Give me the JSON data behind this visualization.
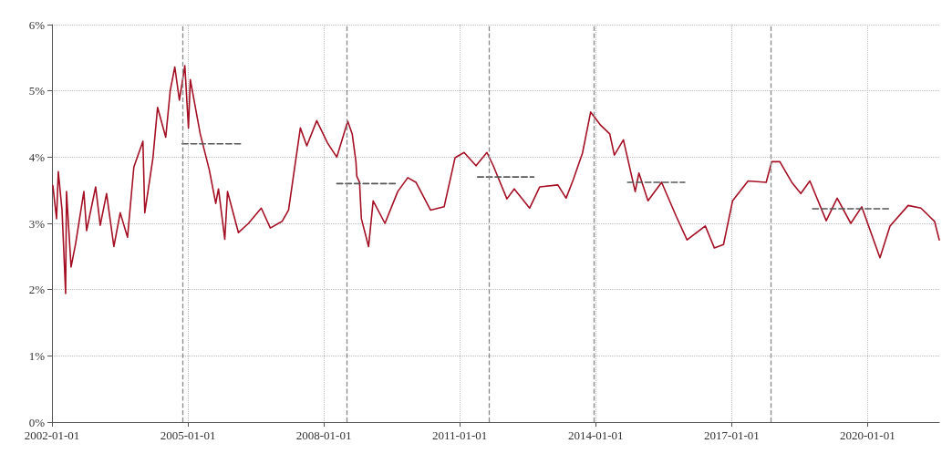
{
  "chart_data": {
    "type": "line",
    "xlim": [
      "2002-01-01",
      "2021-08-01"
    ],
    "xticks": [
      "2002-01-01",
      "2005-01-01",
      "2008-01-01",
      "2011-01-01",
      "2014-01-01",
      "2017-01-01",
      "2020-01-01"
    ],
    "ylim": [
      0,
      6
    ],
    "yticks": [
      {
        "value": 0,
        "label": "0%"
      },
      {
        "value": 1,
        "label": "1%"
      },
      {
        "value": 2,
        "label": "2%"
      },
      {
        "value": 3,
        "label": "3%"
      },
      {
        "value": 4,
        "label": "4%"
      },
      {
        "value": 5,
        "label": "5%"
      },
      {
        "value": 6,
        "label": "6%"
      }
    ],
    "grid": true,
    "marker": "none",
    "line_style": "solid",
    "series": [
      {
        "color": "#a50f24",
        "x": [
          "2002-01-08",
          "2002-02-07",
          "2002-02-21",
          "2002-03-23",
          "2002-04-21",
          "2002-04-28",
          "2002-06-04",
          "2002-07-11",
          "2002-09-15",
          "2002-10-07",
          "2002-12-19",
          "2003-01-25",
          "2003-03-17",
          "2003-05-15",
          "2003-07-05",
          "2003-09-02",
          "2003-10-23",
          "2004-01-04",
          "2004-01-19",
          "2004-03-25",
          "2004-05-01",
          "2004-07-06",
          "2004-08-11",
          "2004-09-17",
          "2004-10-24",
          "2004-12-07",
          "2005-01-05",
          "2005-01-20",
          "2005-04-10",
          "2005-06-23",
          "2005-08-13",
          "2005-09-04",
          "2005-10-25",
          "2005-11-16",
          "2006-02-12",
          "2006-05-04",
          "2006-08-15",
          "2006-10-27",
          "2007-01-30",
          "2007-03-23",
          "2007-06-26",
          "2007-08-17",
          "2007-11-05",
          "2008-02-01",
          "2008-04-15",
          "2008-07-12",
          "2008-08-17",
          "2008-09-16",
          "2008-09-23",
          "2008-10-15",
          "2008-10-30",
          "2008-12-27",
          "2009-02-02",
          "2009-05-08",
          "2009-08-19",
          "2009-11-08",
          "2010-01-13",
          "2010-05-10",
          "2010-08-28",
          "2010-11-24",
          "2011-02-05",
          "2011-05-12",
          "2011-08-08",
          "2011-09-28",
          "2012-01-16",
          "2012-03-15",
          "2012-07-17",
          "2012-10-06",
          "2013-03-02",
          "2013-05-07",
          "2013-07-04",
          "2013-09-16",
          "2013-11-21",
          "2014-02-10",
          "2014-04-24",
          "2014-05-31",
          "2014-08-12",
          "2014-11-15",
          "2014-12-15",
          "2015-02-26",
          "2015-06-16",
          "2015-10-11",
          "2016-01-07",
          "2016-06-02",
          "2016-08-14",
          "2016-10-27",
          "2017-01-08",
          "2017-05-13",
          "2017-10-06",
          "2017-11-19",
          "2018-01-24",
          "2018-04-30",
          "2018-07-12",
          "2018-09-23",
          "2019-02-02",
          "2019-05-01",
          "2019-08-19",
          "2019-11-15",
          "2020-04-10",
          "2020-06-30",
          "2020-11-23",
          "2021-03-06",
          "2021-06-24",
          "2021-08-01"
        ],
        "values": [
          3.57,
          3.07,
          3.78,
          3.2,
          1.94,
          3.48,
          2.34,
          2.7,
          3.48,
          2.89,
          3.55,
          2.97,
          3.45,
          2.65,
          3.16,
          2.79,
          3.85,
          4.24,
          3.16,
          3.99,
          4.75,
          4.3,
          5.0,
          5.36,
          4.86,
          5.38,
          4.44,
          5.17,
          4.35,
          3.8,
          3.3,
          3.52,
          2.76,
          3.48,
          2.86,
          3.0,
          3.23,
          2.93,
          3.03,
          3.2,
          4.44,
          4.17,
          4.55,
          4.21,
          4.0,
          4.54,
          4.35,
          3.93,
          3.71,
          3.62,
          3.07,
          2.65,
          3.34,
          3.0,
          3.48,
          3.69,
          3.62,
          3.2,
          3.25,
          3.99,
          4.07,
          3.87,
          4.07,
          3.87,
          3.37,
          3.52,
          3.23,
          3.55,
          3.58,
          3.38,
          3.66,
          4.06,
          4.68,
          4.48,
          4.35,
          4.03,
          4.26,
          3.48,
          3.76,
          3.34,
          3.62,
          3.11,
          2.75,
          2.96,
          2.63,
          2.68,
          3.34,
          3.64,
          3.62,
          3.93,
          3.93,
          3.62,
          3.45,
          3.64,
          3.04,
          3.38,
          3.0,
          3.25,
          2.48,
          2.96,
          3.27,
          3.23,
          3.03,
          2.75
        ]
      },
      {
        "type": "line",
        "line_style": "dashed",
        "color": "#555555",
        "x": [
          "2004-11-15",
          "2006-03-07"
        ],
        "values": [
          4.2,
          4.2
        ]
      },
      {
        "type": "line",
        "line_style": "dashed",
        "color": "#555555",
        "x": [
          "2008-04-15",
          "2009-08-19"
        ],
        "values": [
          3.6,
          3.6
        ]
      },
      {
        "type": "line",
        "line_style": "dashed",
        "color": "#555555",
        "x": [
          "2011-05-25",
          "2012-08-20"
        ],
        "values": [
          3.7,
          3.7
        ]
      },
      {
        "type": "line",
        "line_style": "dashed",
        "color": "#555555",
        "x": [
          "2014-09-15",
          "2015-12-20"
        ],
        "values": [
          3.62,
          3.62
        ]
      },
      {
        "type": "line",
        "line_style": "dashed",
        "color": "#555555",
        "x": [
          "2018-10-15",
          "2020-07-01"
        ],
        "values": [
          3.22,
          3.22
        ]
      }
    ],
    "ref_lines": [
      {
        "axis": "x",
        "value": "2004-11-22",
        "color": "#888888",
        "line_style": "dashed"
      },
      {
        "axis": "x",
        "value": "2008-07-04",
        "color": "#888888",
        "line_style": "dashed"
      },
      {
        "axis": "x",
        "value": "2011-08-22",
        "color": "#888888",
        "line_style": "dashed"
      },
      {
        "axis": "x",
        "value": "2013-12-20",
        "color": "#888888",
        "line_style": "dashed"
      },
      {
        "axis": "x",
        "value": "2017-11-12",
        "color": "#888888",
        "line_style": "dashed"
      }
    ]
  }
}
